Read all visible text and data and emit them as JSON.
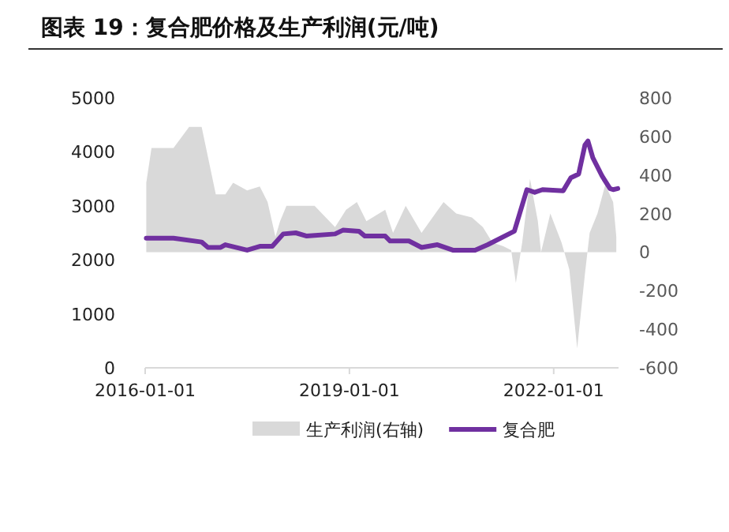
{
  "chart_data": {
    "type": "line",
    "title": "图表 19：复合肥价格及生产利润(元/吨)",
    "legend": "bottom",
    "xlim": [
      "2016-01-01",
      "2022-12-15"
    ],
    "xticks": [
      "2016-01-01",
      "2019-01-01",
      "2022-01-01"
    ],
    "ylim": [
      0,
      5000
    ],
    "yticks": [
      0,
      1000,
      2000,
      3000,
      4000,
      5000
    ],
    "y2lim": [
      -600,
      800
    ],
    "y2ticks": [
      -600,
      -400,
      -200,
      0,
      200,
      400,
      600,
      800
    ],
    "series": [
      {
        "name": "生产利润(右轴)",
        "type": "area",
        "axis": "y2",
        "color": "#d9d9d9",
        "x": [
          "2016-01-07",
          "2016-02-04",
          "2016-06-01",
          "2016-08-24",
          "2016-10-30",
          "2017-01-14",
          "2017-03-06",
          "2017-04-17",
          "2017-07-01",
          "2017-09-07",
          "2017-10-19",
          "2017-11-30",
          "2017-12-25",
          "2018-01-28",
          "2018-06-28",
          "2018-10-16",
          "2018-12-14",
          "2019-02-10",
          "2019-04-02",
          "2019-07-12",
          "2019-08-23",
          "2019-10-30",
          "2020-01-23",
          "2020-05-20",
          "2020-07-27",
          "2020-10-19",
          "2020-12-17",
          "2021-02-06",
          "2021-04-06",
          "2021-05-18",
          "2021-06-12",
          "2021-07-16",
          "2021-08-27",
          "2021-10-08",
          "2021-10-25",
          "2021-12-14",
          "2022-02-12",
          "2022-03-26",
          "2022-05-07",
          "2022-06-18",
          "2022-07-13",
          "2022-08-24",
          "2022-10-05",
          "2022-11-16",
          "2022-12-03"
        ],
        "values": [
          360,
          540,
          540,
          650,
          650,
          300,
          300,
          360,
          320,
          340,
          260,
          80,
          160,
          240,
          240,
          130,
          220,
          260,
          160,
          220,
          100,
          240,
          100,
          260,
          200,
          180,
          130,
          50,
          30,
          10,
          -160,
          50,
          380,
          160,
          0,
          200,
          50,
          -90,
          -500,
          -110,
          100,
          200,
          350,
          260,
          80
        ]
      },
      {
        "name": "复合肥",
        "color": "#7030a0",
        "x": [
          "2016-01-07",
          "2016-06-01",
          "2016-10-30",
          "2016-12-03",
          "2017-02-09",
          "2017-03-06",
          "2017-07-01",
          "2017-09-07",
          "2017-11-13",
          "2018-01-11",
          "2018-03-19",
          "2018-05-17",
          "2018-10-16",
          "2018-11-27",
          "2019-02-21",
          "2019-03-25",
          "2019-07-12",
          "2019-08-07",
          "2019-11-16",
          "2020-01-23",
          "2020-04-17",
          "2020-07-09",
          "2020-11-05",
          "2021-01-12",
          "2021-06-04",
          "2021-08-10",
          "2021-09-21",
          "2021-11-02",
          "2022-02-21",
          "2022-04-03",
          "2022-05-15",
          "2022-06-18",
          "2022-07-04",
          "2022-07-30",
          "2022-09-18",
          "2022-10-30",
          "2022-11-16",
          "2022-12-11"
        ],
        "values": [
          2400,
          2400,
          2330,
          2230,
          2230,
          2280,
          2180,
          2250,
          2250,
          2480,
          2500,
          2440,
          2480,
          2550,
          2530,
          2440,
          2440,
          2350,
          2350,
          2230,
          2280,
          2180,
          2180,
          2280,
          2530,
          3300,
          3250,
          3300,
          3280,
          3520,
          3590,
          4130,
          4200,
          3890,
          3550,
          3320,
          3300,
          3320
        ]
      }
    ]
  }
}
